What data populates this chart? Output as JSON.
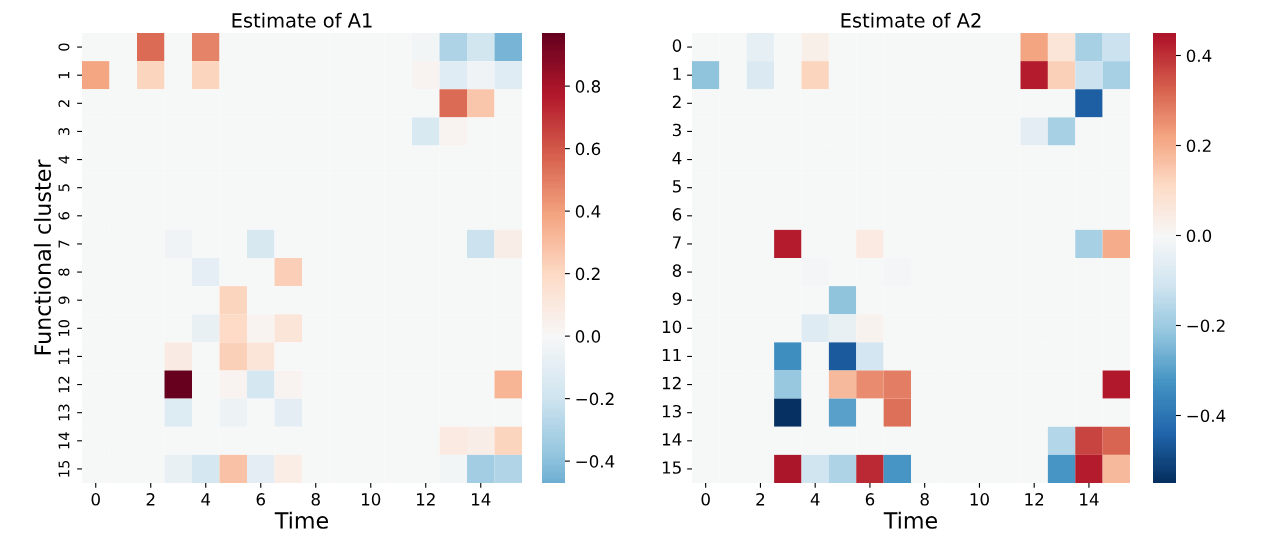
{
  "chart_data": [
    {
      "type": "heatmap",
      "title": "Estimate of A1",
      "xlabel": "Time",
      "ylabel": "Functional cluster",
      "categories": [
        "0",
        null,
        "2",
        null,
        "4",
        null,
        "6",
        null,
        "8",
        null,
        "10",
        null,
        "12",
        null,
        "14",
        null
      ],
      "y_categories": [
        "0",
        "1",
        "2",
        "3",
        "4",
        "5",
        "6",
        "7",
        "8",
        "9",
        "10",
        "11",
        "12",
        "13",
        "14",
        "15"
      ],
      "cells": [
        [
          0,
          0,
          0.55,
          0,
          0.48,
          0,
          0,
          0,
          0,
          0,
          0,
          0,
          -0.03,
          -0.3,
          -0.18,
          -0.45
        ],
        [
          0.38,
          0,
          0.22,
          0,
          0.22,
          0,
          0,
          0,
          0,
          0,
          0,
          0,
          0.03,
          -0.12,
          -0.04,
          -0.12
        ],
        [
          0,
          0,
          0,
          0,
          0,
          0,
          0,
          0,
          0,
          0,
          0,
          0,
          0,
          0.55,
          0.27,
          0
        ],
        [
          0,
          0,
          0,
          0,
          0,
          0,
          0,
          0,
          0,
          0,
          0,
          0,
          -0.15,
          0.03,
          0,
          0
        ],
        [
          0,
          0,
          0,
          0,
          0,
          0,
          0,
          0,
          0,
          0,
          0,
          0,
          0,
          0,
          0,
          0
        ],
        [
          0,
          0,
          0,
          0,
          0,
          0,
          0,
          0,
          0,
          0,
          0,
          0,
          0,
          0,
          0,
          0
        ],
        [
          0,
          0,
          0,
          0,
          0,
          0,
          0,
          0,
          0,
          0,
          0,
          0,
          0,
          0,
          0,
          0
        ],
        [
          0,
          0,
          0,
          -0.04,
          0,
          0,
          -0.16,
          0,
          0,
          0,
          0,
          0,
          0,
          0,
          -0.21,
          0.06
        ],
        [
          0,
          0,
          0,
          0,
          -0.09,
          0,
          0,
          0.24,
          0,
          0,
          0,
          0,
          0,
          0,
          0,
          0
        ],
        [
          0,
          0,
          0,
          0,
          0,
          0.22,
          0,
          0,
          0,
          0,
          0,
          0,
          0,
          0,
          0,
          0
        ],
        [
          0,
          0,
          0,
          0,
          -0.07,
          0.19,
          0.03,
          0.13,
          0,
          0,
          0,
          0,
          0,
          0,
          0,
          0
        ],
        [
          0,
          0,
          0,
          0.08,
          0,
          0.23,
          0.13,
          0,
          0,
          0,
          0,
          0,
          0,
          0,
          0,
          0
        ],
        [
          0,
          0,
          0,
          0.97,
          0,
          0.03,
          -0.17,
          0.03,
          0,
          0,
          0,
          0,
          0,
          0,
          0,
          0.33
        ],
        [
          0,
          0,
          0,
          -0.13,
          0,
          -0.05,
          0,
          -0.1,
          0,
          0,
          0,
          0,
          0,
          0,
          0,
          0
        ],
        [
          0,
          0,
          0,
          0,
          0,
          0,
          0,
          0,
          0,
          0,
          0,
          0,
          0,
          0.09,
          0.06,
          0.22
        ],
        [
          0,
          0,
          0,
          -0.07,
          -0.17,
          0.28,
          -0.1,
          0.07,
          0,
          0,
          0,
          0,
          0,
          -0.03,
          -0.33,
          -0.29
        ]
      ],
      "clim": [
        -0.47,
        0.97
      ],
      "cticks": [
        {
          "value": -0.4,
          "label": "−0.4"
        },
        {
          "value": -0.2,
          "label": "−0.2"
        },
        {
          "value": 0.0,
          "label": "0.0"
        },
        {
          "value": 0.2,
          "label": "0.2"
        },
        {
          "value": 0.4,
          "label": "0.4"
        },
        {
          "value": 0.6,
          "label": "0.6"
        },
        {
          "value": 0.8,
          "label": "0.8"
        }
      ]
    },
    {
      "type": "heatmap",
      "title": "Estimate of A2",
      "xlabel": "Time",
      "categories": [
        "0",
        null,
        "2",
        null,
        "4",
        null,
        "6",
        null,
        "8",
        null,
        "10",
        null,
        "12",
        null,
        "14",
        null
      ],
      "y_categories": [
        "0",
        "1",
        "2",
        "3",
        "4",
        "5",
        "6",
        "7",
        "8",
        "9",
        "10",
        "11",
        "12",
        "13",
        "14",
        "15"
      ],
      "cells": [
        [
          0,
          0,
          -0.05,
          0,
          0.03,
          0,
          0,
          0,
          0,
          0,
          0,
          0,
          0.22,
          0.07,
          -0.18,
          -0.12
        ],
        [
          -0.22,
          0,
          -0.08,
          0,
          0.12,
          0,
          0,
          0,
          0,
          0,
          0,
          0,
          0.43,
          0.13,
          -0.12,
          -0.18
        ],
        [
          0,
          0,
          0,
          0,
          0,
          0,
          0,
          0,
          0,
          0,
          0,
          0,
          0,
          0,
          -0.45,
          0
        ],
        [
          0,
          0,
          0,
          0,
          0,
          0,
          0,
          0,
          0,
          0,
          0,
          0,
          -0.06,
          -0.18,
          0,
          0
        ],
        [
          0,
          0,
          0,
          0,
          0,
          0,
          0,
          0,
          0,
          0,
          0,
          0,
          0,
          0,
          0,
          0
        ],
        [
          0,
          0,
          0,
          0,
          0,
          0,
          0,
          0,
          0,
          0,
          0,
          0,
          0,
          0,
          0,
          0
        ],
        [
          0,
          0,
          0,
          0,
          0,
          0,
          0,
          0,
          0,
          0,
          0,
          0,
          0,
          0,
          0,
          0
        ],
        [
          0,
          0,
          0,
          0.43,
          0,
          0,
          0.05,
          0,
          0,
          0,
          0,
          0,
          0,
          0,
          -0.18,
          0.2
        ],
        [
          0,
          0,
          0,
          0,
          -0.01,
          0,
          0,
          -0.01,
          0,
          0,
          0,
          0,
          0,
          0,
          0,
          0
        ],
        [
          0,
          0,
          0,
          0,
          0,
          -0.22,
          0,
          0,
          0,
          0,
          0,
          0,
          0,
          0,
          0,
          0
        ],
        [
          0,
          0,
          0,
          0,
          -0.07,
          -0.04,
          0.02,
          0,
          0,
          0,
          0,
          0,
          0,
          0,
          0,
          0
        ],
        [
          0,
          0,
          0,
          -0.34,
          0,
          -0.46,
          -0.1,
          0,
          0,
          0,
          0,
          0,
          0,
          0,
          0,
          0
        ],
        [
          0,
          0,
          0,
          -0.21,
          0,
          0.18,
          0.26,
          0.28,
          0,
          0,
          0,
          0,
          0,
          0,
          0,
          0.44
        ],
        [
          0,
          0,
          0,
          -0.55,
          0,
          -0.3,
          0,
          0.3,
          0,
          0,
          0,
          0,
          0,
          0,
          0,
          0
        ],
        [
          0,
          0,
          0,
          0,
          0,
          0,
          0,
          0,
          0,
          0,
          0,
          0,
          0,
          -0.16,
          0.37,
          0.32
        ],
        [
          0,
          0,
          0,
          0.45,
          -0.11,
          -0.17,
          0.41,
          -0.32,
          0,
          0,
          0,
          0,
          0,
          -0.32,
          0.43,
          0.18
        ]
      ],
      "clim": [
        -0.55,
        0.45
      ],
      "cticks": [
        {
          "value": -0.4,
          "label": "−0.4"
        },
        {
          "value": -0.2,
          "label": "−0.2"
        },
        {
          "value": 0.0,
          "label": "0.0"
        },
        {
          "value": 0.2,
          "label": "0.2"
        },
        {
          "value": 0.4,
          "label": "0.4"
        }
      ]
    }
  ]
}
